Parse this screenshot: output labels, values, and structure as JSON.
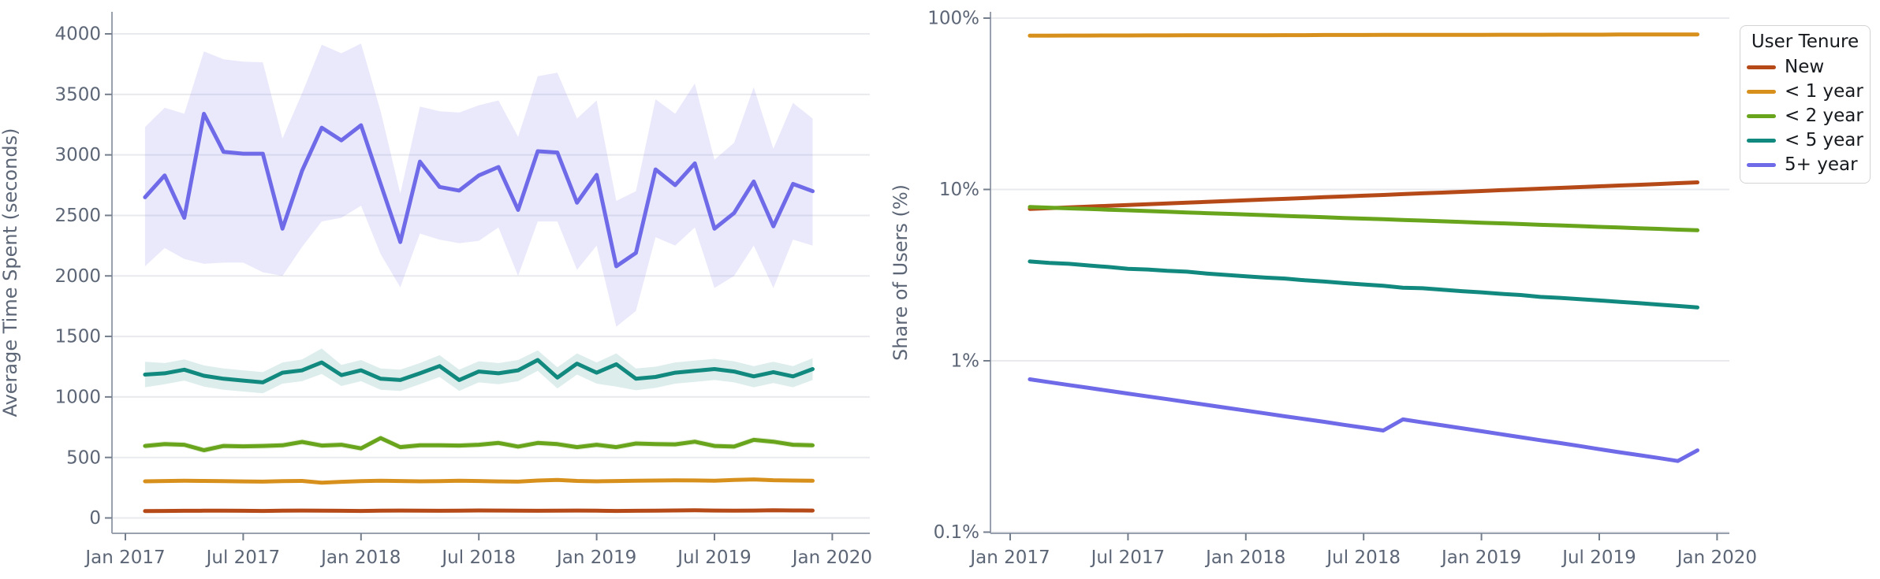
{
  "page": {
    "background": "#ffffff"
  },
  "legend": {
    "title": "User Tenure",
    "entries": [
      {
        "label": "New",
        "color": "#b54a18"
      },
      {
        "label": "< 1 year",
        "color": "#d8901d"
      },
      {
        "label": "< 2 year",
        "color": "#68a41c"
      },
      {
        "label": "< 5 year",
        "color": "#12897e"
      },
      {
        "label": "5+ year",
        "color": "#6f6ae8"
      }
    ]
  },
  "axis_style": {
    "tick_label_color": "#5c6676",
    "axis_label_color": "#5c6676",
    "spine_color": "#9aa1ae",
    "tick_mark_color": "#747e8c",
    "grid_color": "#e9eaee",
    "plot_background": "#ffffff"
  },
  "chart_data": [
    {
      "id": "avg-time-spent",
      "type": "line",
      "title": "",
      "xlabel": "",
      "ylabel": "Average Time Spent (seconds)",
      "y_scale": "linear",
      "ylim": [
        -130,
        4180
      ],
      "y_ticks": [
        0,
        500,
        1000,
        1500,
        2000,
        2500,
        3000,
        3500,
        4000
      ],
      "y_tick_labels": [
        "0",
        "500",
        "1000",
        "1500",
        "2000",
        "2500",
        "3000",
        "3500",
        "4000"
      ],
      "grid": "horizontal",
      "legend_shown": false,
      "x_tick_labels": [
        "Jan 2017",
        "Jul 2017",
        "Jan 2018",
        "Jul 2018",
        "Jan 2019",
        "Jul 2019",
        "Jan 2020"
      ],
      "x_tick_month_offsets": [
        0,
        6,
        12,
        18,
        24,
        30,
        36
      ],
      "x_first_point_month_offset": 1,
      "x_categories": [
        "Feb 2017",
        "Mar 2017",
        "Apr 2017",
        "May 2017",
        "Jun 2017",
        "Jul 2017",
        "Aug 2017",
        "Sep 2017",
        "Oct 2017",
        "Nov 2017",
        "Dec 2017",
        "Jan 2018",
        "Feb 2018",
        "Mar 2018",
        "Apr 2018",
        "May 2018",
        "Jun 2018",
        "Jul 2018",
        "Aug 2018",
        "Sep 2018",
        "Oct 2018",
        "Nov 2018",
        "Dec 2018",
        "Jan 2019",
        "Feb 2019",
        "Mar 2019",
        "Apr 2019",
        "May 2019",
        "Jun 2019",
        "Jul 2019",
        "Aug 2019",
        "Sep 2019",
        "Oct 2019",
        "Nov 2019",
        "Dec 2019"
      ],
      "series": [
        {
          "name": "New",
          "color": "#b54a18",
          "band_halfwidth": 6,
          "band_opacity": 0.12,
          "values": [
            57,
            58,
            59,
            60,
            60,
            59,
            58,
            60,
            61,
            60,
            59,
            58,
            60,
            61,
            60,
            59,
            60,
            62,
            61,
            60,
            59,
            60,
            61,
            60,
            58,
            59,
            60,
            62,
            63,
            61,
            60,
            61,
            64,
            62,
            61
          ]
        },
        {
          "name": "< 1 year",
          "color": "#d8901d",
          "band_halfwidth": 12,
          "band_opacity": 0.15,
          "values": [
            303,
            305,
            307,
            306,
            304,
            302,
            300,
            304,
            306,
            291,
            299,
            304,
            307,
            305,
            303,
            304,
            307,
            305,
            302,
            300,
            309,
            314,
            306,
            303,
            305,
            307,
            309,
            311,
            310,
            307,
            314,
            318,
            312,
            309,
            307
          ]
        },
        {
          "name": "< 2 year",
          "color": "#68a41c",
          "band_halfwidth": 24,
          "band_opacity": 0.16,
          "values": [
            595,
            610,
            605,
            560,
            595,
            592,
            595,
            600,
            628,
            598,
            605,
            575,
            660,
            585,
            600,
            600,
            598,
            605,
            620,
            590,
            620,
            610,
            585,
            605,
            585,
            615,
            610,
            608,
            630,
            595,
            590,
            645,
            630,
            605,
            600
          ]
        },
        {
          "name": "< 5 year",
          "color": "#12897e",
          "band_opacity": 0.15,
          "values": [
            1185,
            1195,
            1225,
            1175,
            1150,
            1135,
            1120,
            1200,
            1220,
            1285,
            1180,
            1220,
            1150,
            1140,
            1195,
            1255,
            1140,
            1210,
            1195,
            1220,
            1305,
            1160,
            1275,
            1200,
            1270,
            1150,
            1165,
            1200,
            1215,
            1230,
            1210,
            1170,
            1205,
            1170,
            1230
          ],
          "band_upper": [
            1290,
            1280,
            1310,
            1260,
            1235,
            1220,
            1205,
            1285,
            1310,
            1400,
            1265,
            1305,
            1235,
            1225,
            1280,
            1345,
            1225,
            1295,
            1280,
            1305,
            1385,
            1245,
            1360,
            1285,
            1360,
            1235,
            1250,
            1285,
            1300,
            1315,
            1295,
            1255,
            1290,
            1255,
            1320
          ],
          "band_lower": [
            1080,
            1105,
            1135,
            1085,
            1060,
            1045,
            1030,
            1110,
            1130,
            1190,
            1090,
            1130,
            1060,
            1050,
            1105,
            1165,
            1050,
            1120,
            1105,
            1130,
            1215,
            1070,
            1185,
            1110,
            1085,
            1055,
            1075,
            1110,
            1125,
            1140,
            1120,
            1080,
            1115,
            1080,
            1140
          ]
        },
        {
          "name": "5+ year",
          "color": "#6f6ae8",
          "band_opacity": 0.15,
          "values": [
            2650,
            2830,
            2480,
            3340,
            3025,
            3010,
            3010,
            2390,
            2870,
            3225,
            3120,
            3245,
            2760,
            2280,
            2945,
            2735,
            2705,
            2830,
            2900,
            2545,
            3030,
            3020,
            2605,
            2835,
            2080,
            2190,
            2880,
            2750,
            2930,
            2390,
            2520,
            2780,
            2410,
            2760,
            2700
          ],
          "band_upper": [
            3230,
            3390,
            3340,
            3855,
            3790,
            3770,
            3765,
            3135,
            3510,
            3910,
            3840,
            3920,
            3360,
            2680,
            3400,
            3360,
            3350,
            3410,
            3450,
            3150,
            3650,
            3680,
            3300,
            3450,
            2620,
            2700,
            3460,
            3340,
            3590,
            2960,
            3100,
            3560,
            3050,
            3430,
            3300
          ],
          "band_lower": [
            2080,
            2230,
            2140,
            2100,
            2110,
            2110,
            2030,
            2000,
            2240,
            2450,
            2480,
            2580,
            2180,
            1905,
            2350,
            2300,
            2270,
            2290,
            2400,
            2000,
            2450,
            2450,
            2050,
            2250,
            1580,
            1710,
            2320,
            2250,
            2400,
            1900,
            2000,
            2250,
            1900,
            2300,
            2250
          ]
        }
      ]
    },
    {
      "id": "share-of-users",
      "type": "line",
      "title": "",
      "xlabel": "",
      "ylabel": "Share of Users (%)",
      "y_scale": "log",
      "ylim": [
        0.101,
        108
      ],
      "y_ticks": [
        0.1,
        1,
        10,
        100
      ],
      "y_tick_labels": [
        "0.1%",
        "1%",
        "10%",
        "100%"
      ],
      "grid": "horizontal",
      "legend_shown": true,
      "x_tick_labels": [
        "Jan 2017",
        "Jul 2017",
        "Jan 2018",
        "Jul 2018",
        "Jan 2019",
        "Jul 2019",
        "Jan 2020"
      ],
      "x_tick_month_offsets": [
        0,
        6,
        12,
        18,
        24,
        30,
        36
      ],
      "x_first_point_month_offset": 1,
      "x_categories": [
        "Feb 2017",
        "Mar 2017",
        "Apr 2017",
        "May 2017",
        "Jun 2017",
        "Jul 2017",
        "Aug 2017",
        "Sep 2017",
        "Oct 2017",
        "Nov 2017",
        "Dec 2017",
        "Jan 2018",
        "Feb 2018",
        "Mar 2018",
        "Apr 2018",
        "May 2018",
        "Jun 2018",
        "Jul 2018",
        "Aug 2018",
        "Sep 2018",
        "Oct 2018",
        "Nov 2018",
        "Dec 2018",
        "Jan 2019",
        "Feb 2019",
        "Mar 2019",
        "Apr 2019",
        "May 2019",
        "Jun 2019",
        "Jul 2019",
        "Aug 2019",
        "Sep 2019",
        "Oct 2019",
        "Nov 2019",
        "Dec 2019"
      ],
      "series": [
        {
          "name": "New",
          "color": "#b54a18",
          "values": [
            7.7,
            7.78,
            7.86,
            7.94,
            8.03,
            8.11,
            8.2,
            8.28,
            8.37,
            8.46,
            8.55,
            8.64,
            8.73,
            8.82,
            8.91,
            9.01,
            9.1,
            9.2,
            9.29,
            9.39,
            9.49,
            9.59,
            9.69,
            9.79,
            9.9,
            10.0,
            10.11,
            10.21,
            10.32,
            10.43,
            10.54,
            10.65,
            10.76,
            10.88,
            11.0
          ]
        },
        {
          "name": "< 1 year",
          "color": "#d8901d",
          "values": [
            79.0,
            79.0,
            79.1,
            79.1,
            79.2,
            79.2,
            79.3,
            79.3,
            79.4,
            79.4,
            79.5,
            79.5,
            79.5,
            79.6,
            79.6,
            79.7,
            79.7,
            79.7,
            79.8,
            79.8,
            79.8,
            79.9,
            79.9,
            79.9,
            80.0,
            80.0,
            80.0,
            80.1,
            80.1,
            80.1,
            80.2,
            80.2,
            80.2,
            80.3,
            80.3
          ]
        },
        {
          "name": "< 2 year",
          "color": "#68a41c",
          "values": [
            7.9,
            7.83,
            7.76,
            7.69,
            7.62,
            7.55,
            7.48,
            7.41,
            7.34,
            7.27,
            7.21,
            7.14,
            7.08,
            7.01,
            6.95,
            6.88,
            6.82,
            6.76,
            6.7,
            6.64,
            6.58,
            6.52,
            6.46,
            6.4,
            6.34,
            6.28,
            6.22,
            6.17,
            6.11,
            6.05,
            6.0,
            5.94,
            5.89,
            5.83,
            5.78
          ]
        },
        {
          "name": "< 5 year",
          "color": "#12897e",
          "values": [
            3.8,
            3.73,
            3.68,
            3.6,
            3.53,
            3.44,
            3.41,
            3.35,
            3.31,
            3.23,
            3.17,
            3.11,
            3.06,
            3.02,
            2.95,
            2.9,
            2.84,
            2.79,
            2.74,
            2.67,
            2.65,
            2.6,
            2.55,
            2.51,
            2.46,
            2.42,
            2.36,
            2.33,
            2.29,
            2.25,
            2.21,
            2.17,
            2.13,
            2.09,
            2.05
          ]
        },
        {
          "name": "5+ year",
          "color": "#6f6ae8",
          "values": [
            0.78,
            0.75,
            0.722,
            0.695,
            0.669,
            0.644,
            0.62,
            0.597,
            0.574,
            0.553,
            0.532,
            0.512,
            0.493,
            0.474,
            0.457,
            0.44,
            0.423,
            0.407,
            0.392,
            0.455,
            0.437,
            0.42,
            0.404,
            0.388,
            0.373,
            0.358,
            0.344,
            0.331,
            0.318,
            0.305,
            0.293,
            0.282,
            0.271,
            0.26,
            0.3
          ]
        }
      ]
    }
  ]
}
